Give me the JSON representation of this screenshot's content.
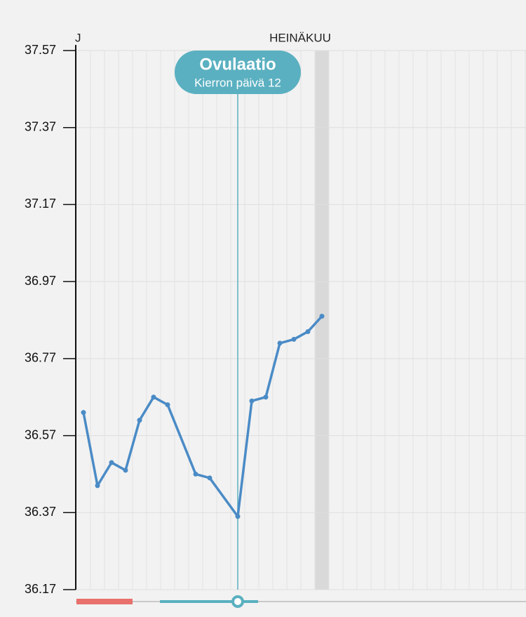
{
  "chart_data": {
    "type": "line",
    "month_labels": [
      "J",
      "HEINÄKUU"
    ],
    "annotation": {
      "title": "Ovulaatio",
      "subtitle": "Kierron päivä 12",
      "x": 12
    },
    "x": [
      1,
      2,
      3,
      4,
      5,
      6,
      7,
      9,
      10,
      12,
      13,
      14,
      15,
      16,
      17,
      18
    ],
    "series": [
      {
        "color": "#4a8bc6",
        "values": [
          36.63,
          36.44,
          36.5,
          36.48,
          36.61,
          36.67,
          36.65,
          36.47,
          36.46,
          36.36,
          36.66,
          36.67,
          36.81,
          36.82,
          36.84,
          36.88
        ]
      }
    ],
    "today": 18,
    "period_days": [
      1,
      4
    ],
    "xlim": [
      0.45,
      32.55
    ],
    "ylim": [
      36.17,
      37.57
    ],
    "yticks": [
      37.57,
      37.37,
      37.17,
      36.97,
      36.77,
      36.57,
      36.37,
      36.17
    ],
    "grid": true
  }
}
